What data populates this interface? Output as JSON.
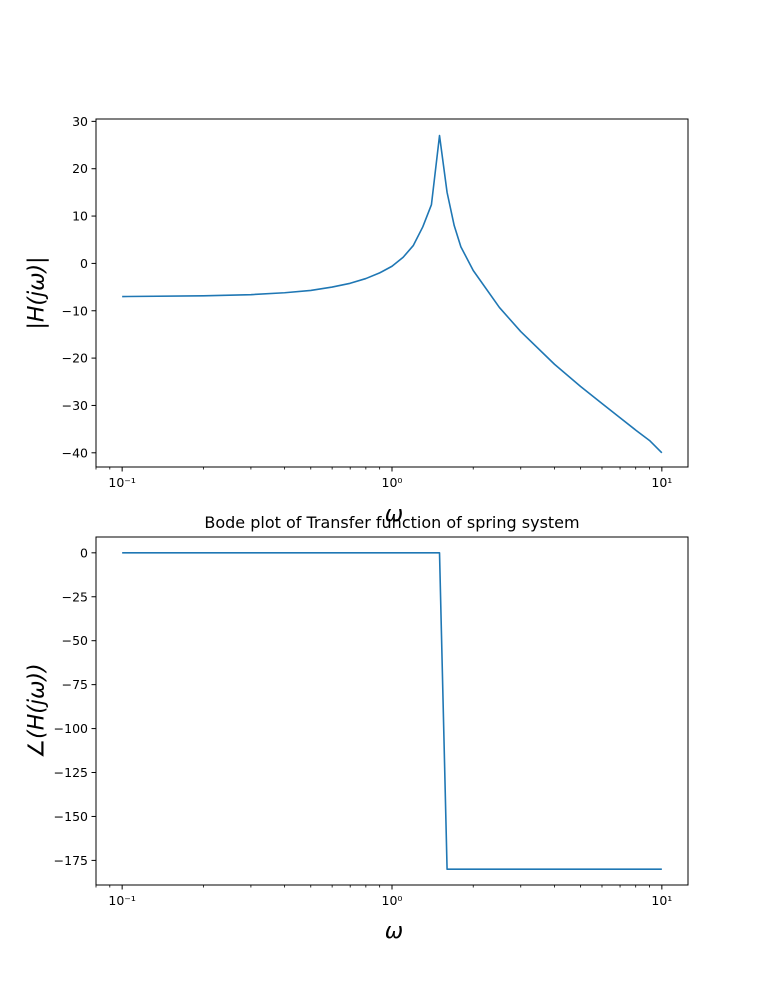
{
  "chart_data": [
    {
      "type": "line",
      "title": "",
      "xlabel": "ω",
      "ylabel": "|H(jω)|",
      "x_scale": "log",
      "xlim": [
        0.08,
        12.5
      ],
      "ylim": [
        -43,
        30.5
      ],
      "grid": false,
      "x_ticks": [
        {
          "value": 0.1,
          "label": "10⁻¹"
        },
        {
          "value": 1,
          "label": "10⁰"
        },
        {
          "value": 10,
          "label": "10¹"
        }
      ],
      "y_ticks": [
        30,
        20,
        10,
        0,
        -10,
        -20,
        -30,
        -40
      ],
      "series": [
        {
          "color": "#1f77b4",
          "x": [
            0.1,
            0.2,
            0.3,
            0.4,
            0.5,
            0.6,
            0.7,
            0.8,
            0.9,
            1.0,
            1.1,
            1.2,
            1.3,
            1.4,
            1.5,
            1.6,
            1.7,
            1.8,
            2.0,
            2.5,
            3,
            4,
            5,
            6,
            7,
            8,
            9,
            10
          ],
          "y": [
            -7.0,
            -6.85,
            -6.6,
            -6.2,
            -5.7,
            -5.0,
            -4.2,
            -3.2,
            -2.0,
            -0.6,
            1.3,
            3.8,
            7.7,
            12.4,
            27.0,
            15.0,
            8.0,
            3.5,
            -1.5,
            -9.3,
            -14.4,
            -21.3,
            -26.0,
            -29.6,
            -32.6,
            -35.2,
            -37.4,
            -40.0
          ]
        }
      ]
    },
    {
      "type": "line",
      "title": "Bode plot of Transfer function of spring system",
      "xlabel": "ω",
      "ylabel": "∠(H(jω))",
      "x_scale": "log",
      "xlim": [
        0.08,
        12.5
      ],
      "ylim": [
        -189,
        9
      ],
      "grid": false,
      "x_ticks": [
        {
          "value": 0.1,
          "label": "10⁻¹"
        },
        {
          "value": 1,
          "label": "10⁰"
        },
        {
          "value": 10,
          "label": "10¹"
        }
      ],
      "y_ticks": [
        0,
        -25,
        -50,
        -75,
        -100,
        -125,
        -150,
        -175
      ],
      "series": [
        {
          "color": "#1f77b4",
          "x": [
            0.1,
            1.5,
            1.6,
            10
          ],
          "y": [
            0,
            0,
            -180,
            -180
          ]
        }
      ]
    }
  ]
}
